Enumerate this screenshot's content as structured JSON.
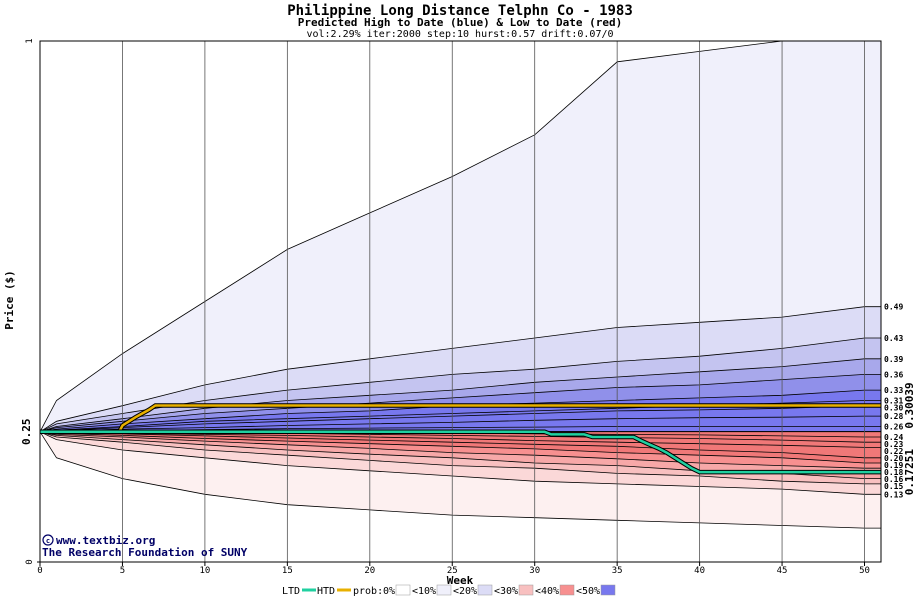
{
  "chart_data": {
    "type": "area",
    "title": "Philippine Long Distance Telphn Co  - 1983",
    "subtitle": "Predicted High to Date (blue) &  Low to Date (red)",
    "params": "vol:2.29% iter:2000 step:10 hurst:0.57 drift:0.07/0",
    "xlabel": "Week",
    "ylabel": "Price ($)",
    "xlim": [
      0,
      51
    ],
    "ylim": [
      0,
      1
    ],
    "x_ticks": [
      0,
      5,
      10,
      15,
      20,
      25,
      30,
      35,
      40,
      45,
      50
    ],
    "y_ticks": [
      {
        "value": 0,
        "label": "0"
      },
      {
        "value": 1,
        "label": "1"
      }
    ],
    "start_price": {
      "value": 0.25,
      "label": "0.25"
    },
    "current_high": {
      "value": 0.30039,
      "label": "0.30039",
      "color": "#b8860b"
    },
    "current_low": {
      "value": 0.17251,
      "label": "0.17251",
      "color": "#009966"
    },
    "right_labels": [
      "0.49",
      "0.43",
      "0.39",
      "0.36",
      "0.33",
      "0.31",
      "0.30",
      "0.28",
      "0.26",
      "0.24",
      "0.23",
      "0.22",
      "0.20",
      "0.19",
      "0.18",
      "0.16",
      "0.15",
      "0.13"
    ],
    "x": [
      0,
      1,
      5,
      10,
      15,
      20,
      25,
      30,
      35,
      40,
      45,
      50,
      51
    ],
    "upper_bands": [
      {
        "level": "0%",
        "color": "#f0f0fb",
        "values": [
          0.25,
          0.31,
          0.4,
          0.5,
          0.6,
          0.67,
          0.74,
          0.82,
          0.96,
          0.98,
          1.0,
          1.0,
          1.0
        ]
      },
      {
        "level": "10%",
        "color": "#dcdcf6",
        "values": [
          0.25,
          0.27,
          0.3,
          0.34,
          0.37,
          0.39,
          0.41,
          0.43,
          0.45,
          0.46,
          0.47,
          0.49,
          0.49
        ]
      },
      {
        "level": "20%",
        "color": "#c4c4f0",
        "values": [
          0.25,
          0.265,
          0.285,
          0.31,
          0.33,
          0.345,
          0.36,
          0.37,
          0.385,
          0.395,
          0.41,
          0.43,
          0.43
        ]
      },
      {
        "level": "30%",
        "color": "#a8a8eb",
        "values": [
          0.25,
          0.26,
          0.275,
          0.295,
          0.31,
          0.32,
          0.33,
          0.345,
          0.355,
          0.365,
          0.375,
          0.39,
          0.39
        ]
      },
      {
        "level": "40%",
        "color": "#9090ea",
        "values": [
          0.25,
          0.258,
          0.27,
          0.285,
          0.295,
          0.305,
          0.315,
          0.325,
          0.335,
          0.34,
          0.35,
          0.36,
          0.36
        ]
      },
      {
        "level": "50%",
        "color": "#7878ee",
        "values": [
          0.25,
          0.255,
          0.265,
          0.275,
          0.285,
          0.29,
          0.3,
          0.305,
          0.31,
          0.315,
          0.32,
          0.33,
          0.33
        ]
      }
    ],
    "upper_inner_lines": [
      [
        0.25,
        0.253,
        0.26,
        0.27,
        0.275,
        0.28,
        0.285,
        0.29,
        0.295,
        0.3,
        0.305,
        0.31,
        0.31
      ],
      [
        0.25,
        0.252,
        0.258,
        0.265,
        0.27,
        0.275,
        0.28,
        0.285,
        0.29,
        0.292,
        0.295,
        0.3,
        0.3
      ],
      [
        0.25,
        0.251,
        0.255,
        0.258,
        0.262,
        0.265,
        0.268,
        0.272,
        0.275,
        0.277,
        0.278,
        0.28,
        0.28
      ],
      [
        0.25,
        0.25,
        0.252,
        0.254,
        0.256,
        0.257,
        0.258,
        0.259,
        0.26,
        0.26,
        0.26,
        0.26,
        0.26
      ]
    ],
    "lower_bands": [
      {
        "level": "0%",
        "color": "#fdf0f0",
        "values": [
          0.25,
          0.2,
          0.16,
          0.13,
          0.11,
          0.1,
          0.09,
          0.085,
          0.08,
          0.075,
          0.07,
          0.065,
          0.065
        ]
      },
      {
        "level": "10%",
        "color": "#fbd8d8",
        "values": [
          0.25,
          0.235,
          0.215,
          0.2,
          0.185,
          0.175,
          0.165,
          0.155,
          0.15,
          0.145,
          0.14,
          0.13,
          0.13
        ]
      },
      {
        "level": "20%",
        "color": "#f8c0c0",
        "values": [
          0.25,
          0.24,
          0.23,
          0.215,
          0.205,
          0.195,
          0.185,
          0.18,
          0.17,
          0.165,
          0.155,
          0.15,
          0.15
        ]
      },
      {
        "level": "30%",
        "color": "#f7a8a8",
        "values": [
          0.25,
          0.243,
          0.235,
          0.225,
          0.215,
          0.207,
          0.2,
          0.19,
          0.185,
          0.175,
          0.17,
          0.16,
          0.16
        ]
      },
      {
        "level": "40%",
        "color": "#f79090",
        "values": [
          0.25,
          0.245,
          0.24,
          0.232,
          0.225,
          0.218,
          0.21,
          0.205,
          0.198,
          0.19,
          0.185,
          0.18,
          0.18
        ]
      },
      {
        "level": "50%",
        "color": "#f07878",
        "values": [
          0.25,
          0.247,
          0.243,
          0.237,
          0.232,
          0.227,
          0.222,
          0.217,
          0.21,
          0.205,
          0.2,
          0.19,
          0.19
        ]
      }
    ],
    "lower_inner_lines": [
      [
        0.25,
        0.248,
        0.246,
        0.242,
        0.238,
        0.234,
        0.23,
        0.226,
        0.222,
        0.215,
        0.21,
        0.2,
        0.2
      ],
      [
        0.25,
        0.249,
        0.247,
        0.245,
        0.243,
        0.24,
        0.237,
        0.233,
        0.23,
        0.227,
        0.224,
        0.22,
        0.22
      ],
      [
        0.25,
        0.25,
        0.249,
        0.248,
        0.247,
        0.245,
        0.243,
        0.241,
        0.239,
        0.237,
        0.234,
        0.23,
        0.23
      ],
      [
        0.25,
        0.25,
        0.25,
        0.249,
        0.249,
        0.248,
        0.247,
        0.246,
        0.245,
        0.244,
        0.242,
        0.24,
        0.24
      ]
    ],
    "series": [
      {
        "name": "HTD",
        "color": "#e8b000",
        "x": [
          0,
          4.8,
          5,
          5.4,
          5.8,
          6.2,
          6.6,
          7,
          51
        ],
        "values": [
          0.25,
          0.25,
          0.262,
          0.27,
          0.278,
          0.285,
          0.292,
          0.30039,
          0.30039
        ]
      },
      {
        "name": "LTD",
        "color": "#20d0a0",
        "x": [
          0,
          30.6,
          31,
          33,
          33.5,
          36,
          36.5,
          37,
          37.5,
          38,
          38.5,
          39,
          39.5,
          40,
          51
        ],
        "values": [
          0.25,
          0.25,
          0.245,
          0.245,
          0.24,
          0.24,
          0.232,
          0.225,
          0.218,
          0.21,
          0.2,
          0.19,
          0.18,
          0.17251,
          0.17251
        ]
      }
    ],
    "legend": {
      "ltd_label": "LTD",
      "htd_label": "HTD",
      "prob_label": "prob:",
      "items": [
        {
          "label": "0%",
          "color": "#ffffff"
        },
        {
          "label": "<10%",
          "color": "#f0f0fb"
        },
        {
          "label": "<20%",
          "color": "#dcdcf6"
        },
        {
          "label": "<30%",
          "color": "#f8c0c0"
        },
        {
          "label": "<40%",
          "color": "#f79090"
        },
        {
          "label": "<50%",
          "color": "#7878ee"
        }
      ]
    },
    "credits": [
      "www.textbiz.org",
      "The Research Foundation of SUNY"
    ],
    "grid": true
  }
}
